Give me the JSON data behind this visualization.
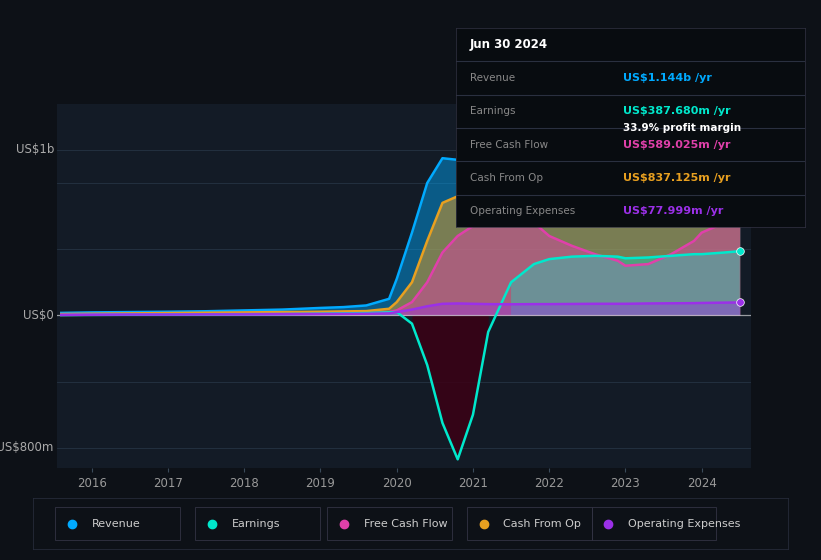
{
  "background_color": "#0d1117",
  "plot_bg_color": "#131b26",
  "colors": {
    "revenue": "#00aaff",
    "earnings": "#00e8cc",
    "free_cash_flow": "#e040aa",
    "cash_from_op": "#e8a020",
    "operating_expenses": "#9b30e8"
  },
  "tooltip": {
    "date": "Jun 30 2024",
    "revenue": "US$1.144b",
    "earnings": "US$387.680m",
    "profit_margin": "33.9%",
    "free_cash_flow": "US$589.025m",
    "cash_from_op": "US$837.125m",
    "operating_expenses": "US$77.999m"
  },
  "legend_items": [
    "Revenue",
    "Earnings",
    "Free Cash Flow",
    "Cash From Op",
    "Operating Expenses"
  ],
  "legend_colors": [
    "#00aaff",
    "#00e8cc",
    "#e040aa",
    "#e8a020",
    "#9b30e8"
  ]
}
